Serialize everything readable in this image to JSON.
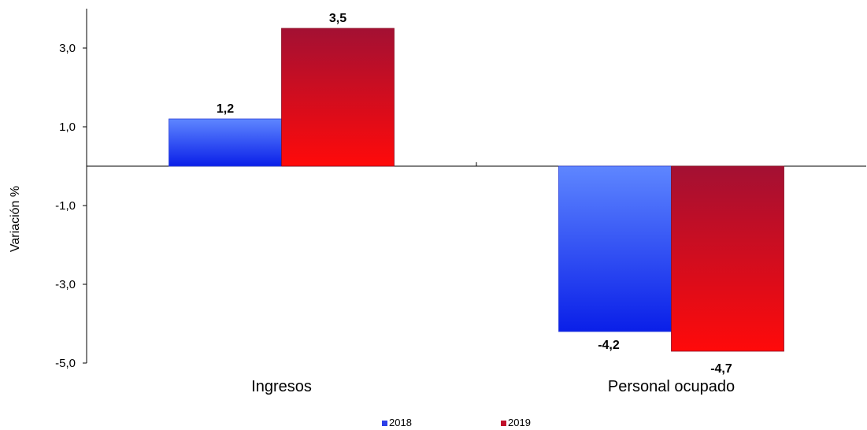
{
  "chart_data": {
    "type": "bar",
    "categories": [
      "Ingresos",
      "Personal ocupado"
    ],
    "series": [
      {
        "name": "2018",
        "values": [
          1.2,
          -4.2
        ]
      },
      {
        "name": "2019",
        "values": [
          3.5,
          -4.7
        ]
      }
    ],
    "value_labels": [
      [
        "1,2",
        "-4,2"
      ],
      [
        "3,5",
        "-4,7"
      ]
    ],
    "ylabel": "Variación %",
    "ylim": [
      -5.0,
      4.0
    ],
    "yticks": [
      3.0,
      1.0,
      -1.0,
      -3.0,
      -5.0
    ],
    "ytick_labels": [
      "3,0",
      "1,0",
      "-1,0",
      "-3,0",
      "-5,0"
    ],
    "grid": false,
    "legend_position": "bottom",
    "colors": {
      "2018": {
        "light": "#5e86ff",
        "dark": "#0a1fe8"
      },
      "2019": {
        "top": "#a31033",
        "bottom": "#ff0a0a"
      }
    }
  }
}
